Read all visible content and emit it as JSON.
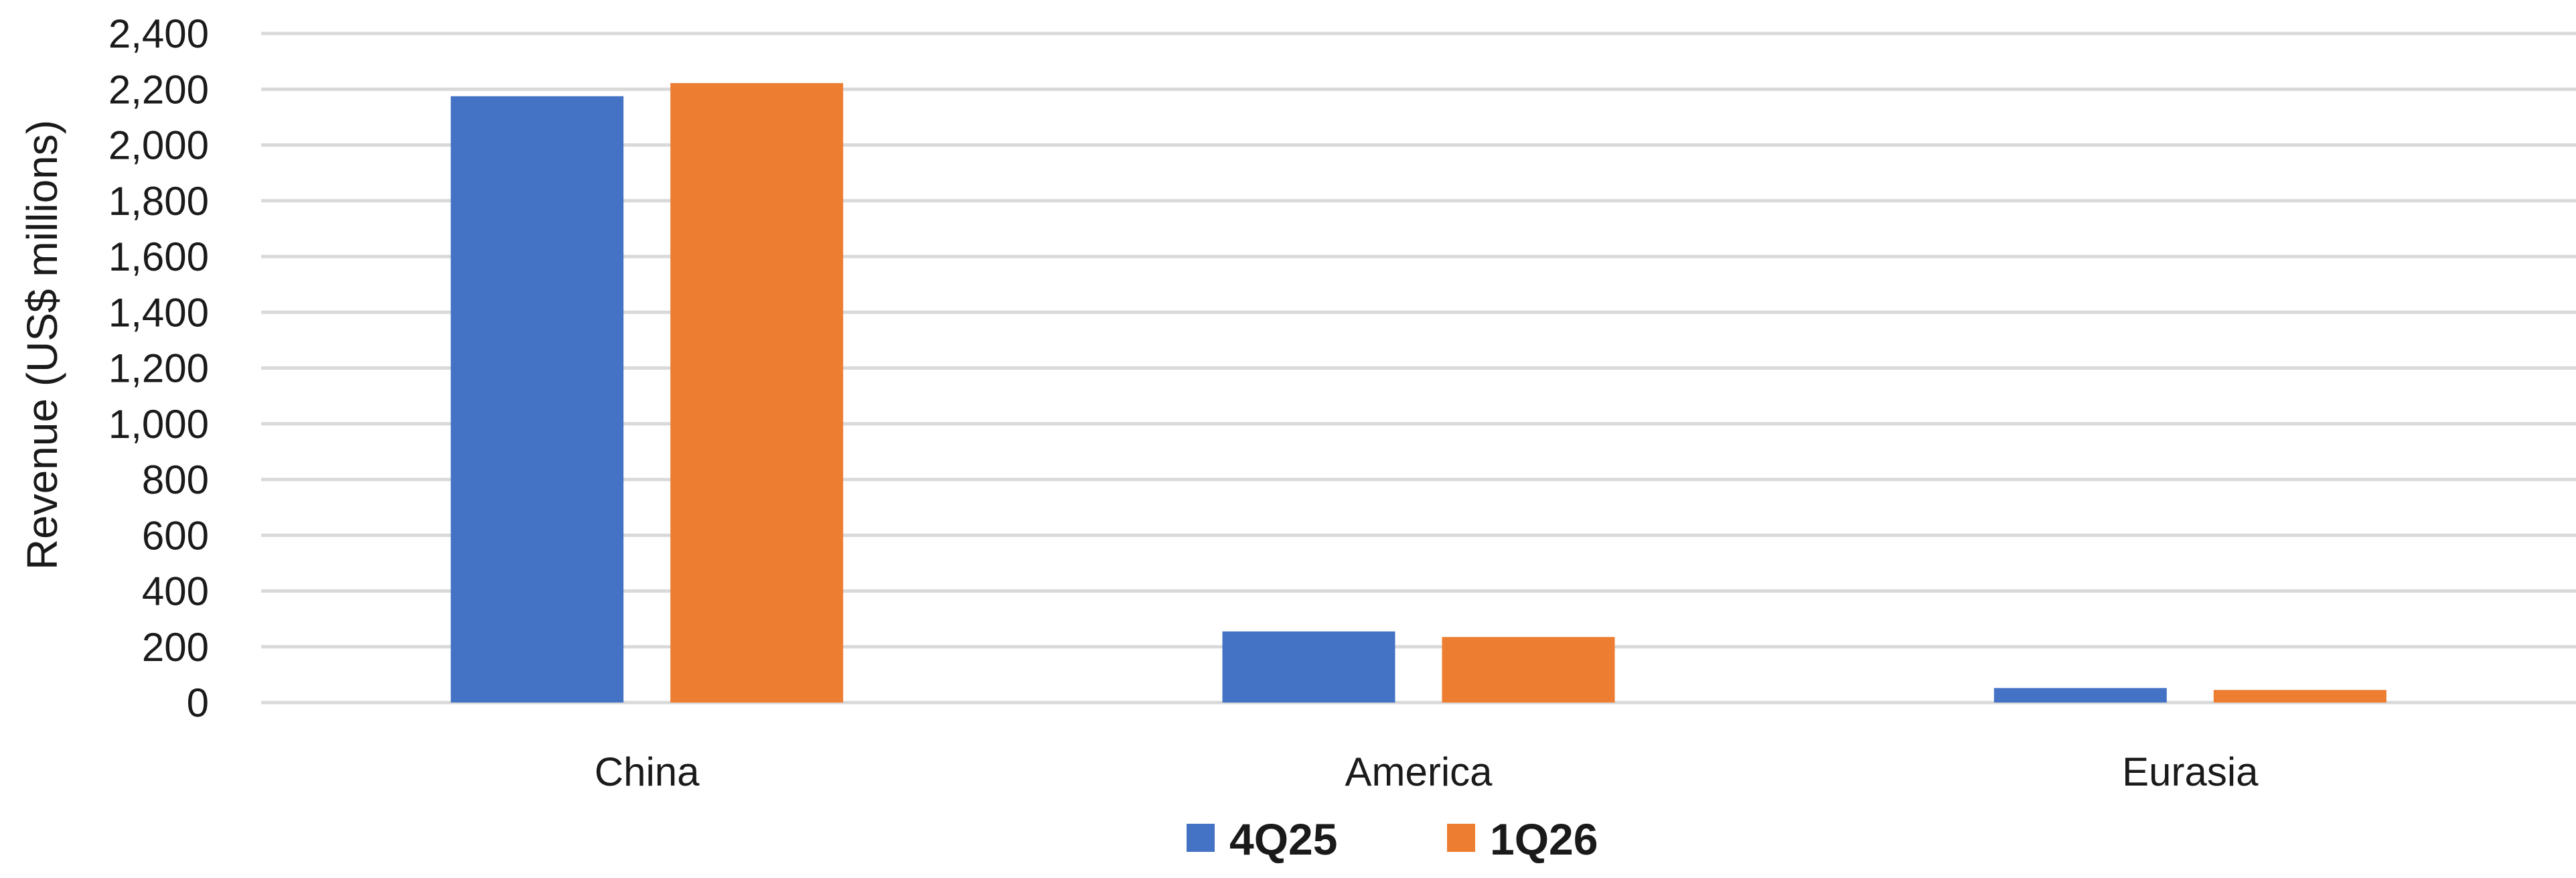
{
  "chart_data": {
    "type": "bar",
    "categories": [
      "China",
      "America",
      "Eurasia"
    ],
    "series": [
      {
        "name": "4Q25",
        "values": [
          2175,
          255,
          52
        ],
        "color": "#4472C4"
      },
      {
        "name": "1Q26",
        "values": [
          2222,
          235,
          45
        ],
        "color": "#ED7D31"
      }
    ],
    "title": "",
    "xlabel": "",
    "ylabel": "Revenue (US$  millions)",
    "ylim": [
      0,
      2400
    ],
    "yticks": [
      "0",
      "200",
      "400",
      "600",
      "800",
      "1,000",
      "1,200",
      "1,400",
      "1,600",
      "1,800",
      "2,000",
      "2,200",
      "2,400"
    ],
    "grid": true,
    "legend_position": "bottom"
  }
}
